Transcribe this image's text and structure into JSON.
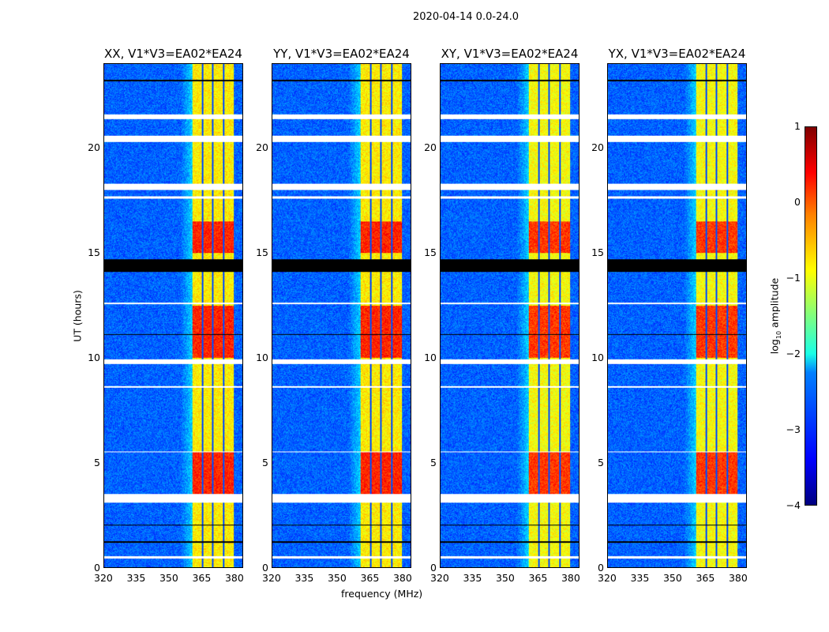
{
  "chart_data": {
    "type": "heatmap",
    "title": "2020-04-14 0.0-24.0",
    "xlabel": "frequency (MHz)",
    "ylabel": "UT (hours)",
    "xlim": [
      320,
      384
    ],
    "ylim": [
      0,
      24
    ],
    "xticks": [
      "320",
      "335",
      "350",
      "365",
      "380"
    ],
    "xtick_values": [
      320,
      335,
      350,
      365,
      380
    ],
    "yticks": [
      "0",
      "5",
      "10",
      "15",
      "20"
    ],
    "ytick_values": [
      0,
      5,
      10,
      15,
      20
    ],
    "panels": [
      {
        "title": "XX, V1*V3=EA02*EA24"
      },
      {
        "title": "YY, V1*V3=EA02*EA24"
      },
      {
        "title": "XY, V1*V3=EA02*EA24"
      },
      {
        "title": "YX, V1*V3=EA02*EA24"
      }
    ],
    "colorbar": {
      "label": "log10 amplitude",
      "label_main": "log",
      "label_sub": "10",
      "label_rest": " amplitude",
      "range": [
        -4,
        1
      ],
      "ticks": [
        "1",
        "0",
        "−1",
        "−2",
        "−3",
        "−4"
      ],
      "tick_values": [
        1,
        0,
        -1,
        -2,
        -3,
        -4
      ],
      "colormap": "jet"
    },
    "features": {
      "bright_band_mhz": [
        360.7,
        380
      ],
      "band_gaps_mhz": [
        365.5,
        370.2,
        375.3
      ],
      "strong_periods_ut": [
        [
          3.5,
          5.5
        ],
        [
          10,
          12.5
        ],
        [
          15,
          16.5
        ]
      ],
      "flagged_white_ut": [
        [
          21.4,
          21.6
        ],
        [
          20.3,
          20.6
        ],
        [
          18.0,
          18.3
        ],
        [
          17.6,
          17.7
        ],
        [
          12.55,
          12.65
        ],
        [
          9.7,
          9.95
        ],
        [
          8.6,
          8.65
        ],
        [
          5.5,
          5.55
        ],
        [
          3.1,
          3.5
        ],
        [
          0.45,
          0.55
        ]
      ],
      "flagged_black_ut": [
        [
          14.1,
          14.7
        ],
        [
          23.2,
          23.25
        ],
        [
          11.1,
          11.15
        ],
        [
          2.0,
          2.05
        ],
        [
          1.2,
          1.25
        ]
      ]
    }
  }
}
